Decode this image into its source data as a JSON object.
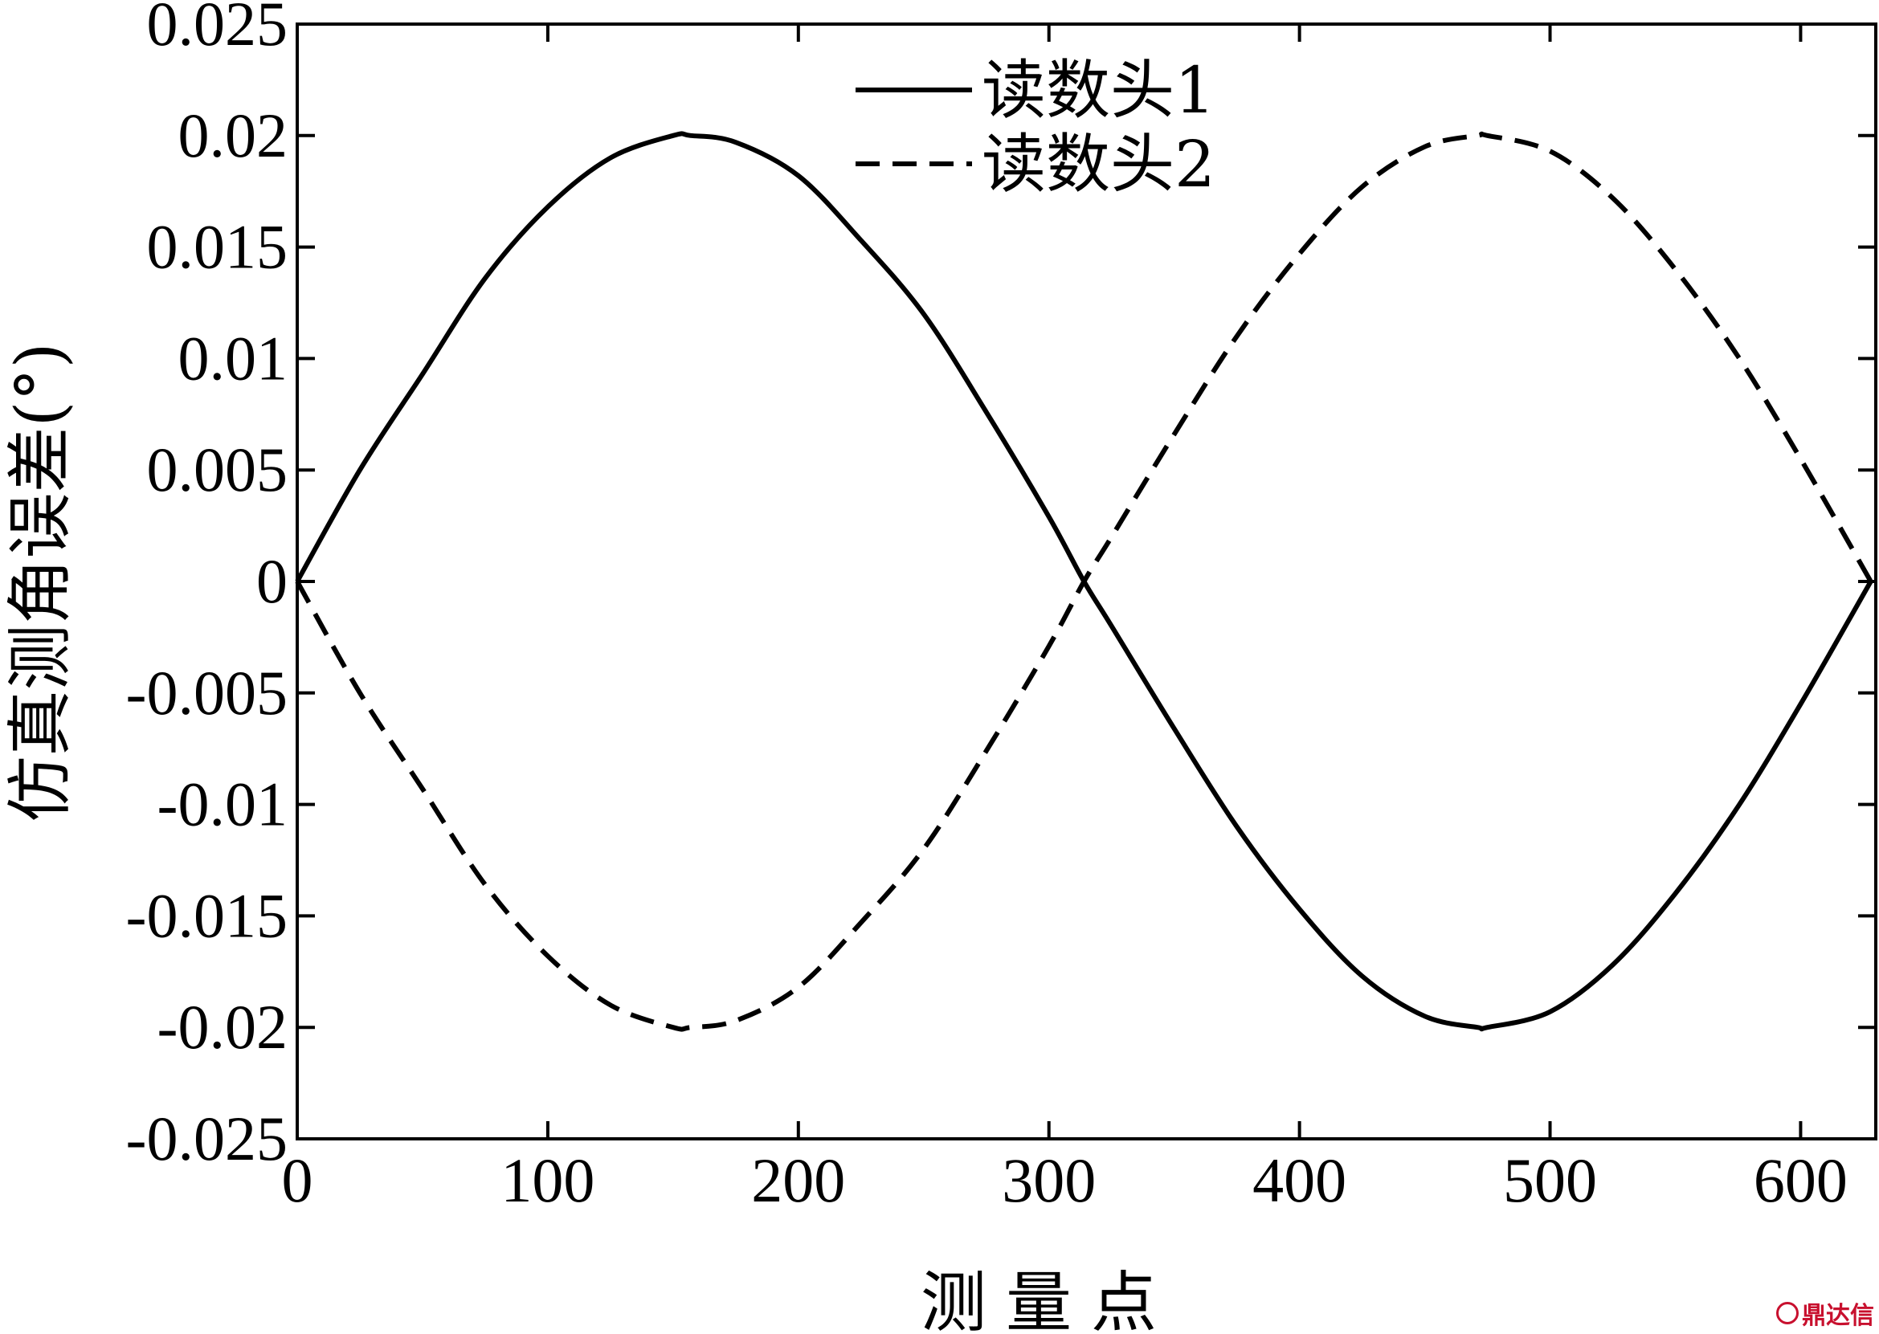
{
  "chart_data": {
    "type": "line",
    "xlabel": "测量点",
    "ylabel": "仿真测角误差(°)",
    "xlim": [
      0,
      630
    ],
    "ylim": [
      -0.025,
      0.025
    ],
    "x_ticks": [
      0,
      100,
      200,
      300,
      400,
      500,
      600
    ],
    "x_tick_labels": [
      "0",
      "100",
      "200",
      "300",
      "400",
      "500",
      "600"
    ],
    "y_ticks": [
      0.025,
      0.02,
      0.015,
      0.01,
      0.005,
      0,
      -0.005,
      -0.01,
      -0.015,
      -0.02,
      -0.025
    ],
    "y_tick_labels": [
      "0.025",
      "0.02",
      "0.015",
      "0.01",
      "0.005",
      "0",
      "-0.005",
      "-0.01",
      "-0.015",
      "-0.02",
      "-0.025"
    ],
    "grid": false,
    "legend_position": "top-center",
    "series": [
      {
        "name": "读数头1",
        "style": "solid",
        "color": "#000000",
        "x": [
          0,
          25,
          50,
          75,
          100,
          125,
          150,
          157,
          175,
          200,
          225,
          250,
          275,
          300,
          314,
          325,
          350,
          375,
          400,
          425,
          450,
          471,
          475,
          500,
          525,
          550,
          575,
          600,
          628
        ],
        "y": [
          0,
          0.005,
          0.0093,
          0.0136,
          0.0168,
          0.019,
          0.02,
          0.02,
          0.0197,
          0.0182,
          0.0153,
          0.012,
          0.0076,
          0.0029,
          0,
          -0.002,
          -0.0066,
          -0.011,
          -0.0147,
          -0.0177,
          -0.0195,
          -0.02,
          -0.02,
          -0.0193,
          -0.0172,
          -0.014,
          -0.0101,
          -0.0055,
          0
        ]
      },
      {
        "name": "读数头2",
        "style": "dashed",
        "color": "#000000",
        "x": [
          0,
          25,
          50,
          75,
          100,
          125,
          150,
          157,
          175,
          200,
          225,
          250,
          275,
          300,
          314,
          325,
          350,
          375,
          400,
          425,
          450,
          471,
          475,
          500,
          525,
          550,
          575,
          600,
          628
        ],
        "y": [
          0,
          -0.005,
          -0.0093,
          -0.0136,
          -0.0168,
          -0.019,
          -0.02,
          -0.02,
          -0.0197,
          -0.0182,
          -0.0153,
          -0.012,
          -0.0076,
          -0.0029,
          0,
          0.002,
          0.0066,
          0.011,
          0.0147,
          0.0177,
          0.0195,
          0.02,
          0.02,
          0.0193,
          0.0172,
          0.014,
          0.0101,
          0.0055,
          0
        ]
      }
    ]
  },
  "watermark": {
    "text": "鼎达信",
    "icon": "logo-circle-icon",
    "color": "#c8102e"
  }
}
